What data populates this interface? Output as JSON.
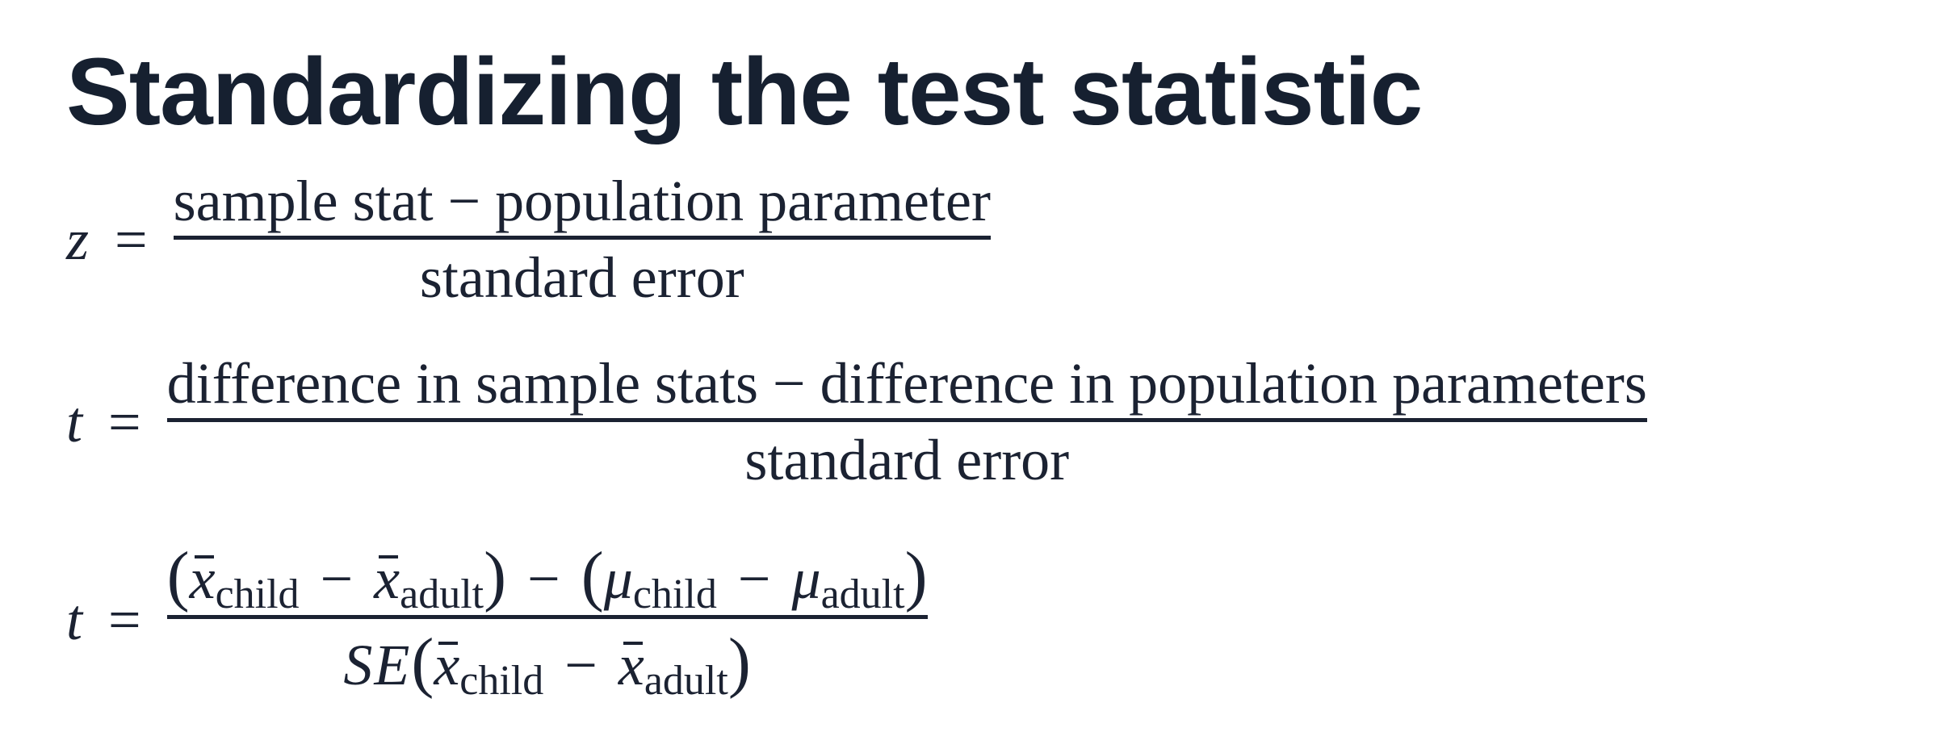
{
  "title": "Standardizing the test statistic",
  "formula_z": {
    "lhs": "z",
    "equals": "=",
    "numerator": "sample stat − population parameter",
    "denominator": "standard error"
  },
  "formula_t1": {
    "lhs": "t",
    "equals": "=",
    "numerator": "difference in sample stats − difference in population parameters",
    "denominator": "standard error"
  },
  "formula_t2": {
    "lhs": "t",
    "equals": "=",
    "numerator": {
      "open1": "(",
      "xbar1": "x",
      "sub1": "child",
      "minus1": "−",
      "xbar2": "x",
      "sub2": "adult",
      "close1": ")",
      "minus_mid": "−",
      "open2": "(",
      "mu1": "μ",
      "musub1": "child",
      "minus2": "−",
      "mu2": "μ",
      "musub2": "adult",
      "close2": ")"
    },
    "denominator": {
      "se": "SE",
      "open": "(",
      "xbar1": "x",
      "sub1": "child",
      "minus": "−",
      "xbar2": "x",
      "sub2": "adult",
      "close": ")"
    }
  }
}
